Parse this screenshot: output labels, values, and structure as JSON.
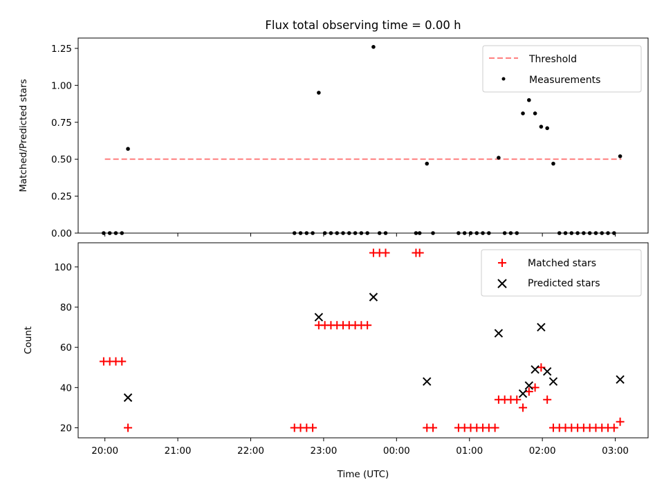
{
  "chart_data": [
    {
      "type": "scatter",
      "title": "Flux total observing time = 0.00 h",
      "xlabel": "",
      "ylabel": "Matched/Predicted stars",
      "xlim": [
        "19:38",
        "03:27"
      ],
      "ylim": [
        0,
        1.32
      ],
      "y_ticks": [
        "0.00",
        "0.25",
        "0.50",
        "0.75",
        "1.00",
        "1.25"
      ],
      "x_ticks": [
        "20:00",
        "21:00",
        "22:00",
        "23:00",
        "00:00",
        "01:00",
        "02:00",
        "03:00"
      ],
      "x_tick_labels_shown": false,
      "legend": {
        "placement": "top-right",
        "entries": [
          "Threshold",
          "Measurements"
        ]
      },
      "colors": {
        "threshold": "#ff7f7f",
        "measurements": "#000000"
      },
      "threshold": {
        "name": "Threshold",
        "y": 0.5,
        "x_start": "20:00",
        "x_end": "03:05"
      },
      "series": [
        {
          "name": "Measurements",
          "marker": "dot",
          "points": [
            [
              "19:59",
              0
            ],
            [
              "20:04",
              0
            ],
            [
              "20:09",
              0
            ],
            [
              "20:14",
              0
            ],
            [
              "20:19",
              0.57
            ],
            [
              "22:36",
              0
            ],
            [
              "22:41",
              0
            ],
            [
              "22:46",
              0
            ],
            [
              "22:51",
              0
            ],
            [
              "22:56",
              0.95
            ],
            [
              "23:01",
              0
            ],
            [
              "23:06",
              0
            ],
            [
              "23:11",
              0
            ],
            [
              "23:16",
              0
            ],
            [
              "23:21",
              0
            ],
            [
              "23:26",
              0
            ],
            [
              "23:31",
              0
            ],
            [
              "23:36",
              0
            ],
            [
              "23:41",
              1.26
            ],
            [
              "23:46",
              0
            ],
            [
              "23:51",
              0
            ],
            [
              "00:16",
              0
            ],
            [
              "00:19",
              0
            ],
            [
              "00:25",
              0.47
            ],
            [
              "00:30",
              0
            ],
            [
              "00:51",
              0
            ],
            [
              "00:56",
              0
            ],
            [
              "01:01",
              0
            ],
            [
              "01:06",
              0
            ],
            [
              "01:11",
              0
            ],
            [
              "01:16",
              0
            ],
            [
              "01:24",
              0.51
            ],
            [
              "01:29",
              0
            ],
            [
              "01:34",
              0
            ],
            [
              "01:39",
              0
            ],
            [
              "01:44",
              0.81
            ],
            [
              "01:49",
              0.9
            ],
            [
              "01:54",
              0.81
            ],
            [
              "01:59",
              0.72
            ],
            [
              "02:04",
              0.71
            ],
            [
              "02:09",
              0.47
            ],
            [
              "02:14",
              0
            ],
            [
              "02:19",
              0
            ],
            [
              "02:24",
              0
            ],
            [
              "02:29",
              0
            ],
            [
              "02:34",
              0
            ],
            [
              "02:39",
              0
            ],
            [
              "02:44",
              0
            ],
            [
              "02:49",
              0
            ],
            [
              "02:54",
              0
            ],
            [
              "02:59",
              0
            ],
            [
              "03:04",
              0.52
            ]
          ]
        }
      ]
    },
    {
      "type": "scatter",
      "title": "",
      "xlabel": "Time (UTC)",
      "ylabel": "Count",
      "xlim": [
        "19:38",
        "03:27"
      ],
      "ylim": [
        15,
        112
      ],
      "y_ticks": [
        "20",
        "40",
        "60",
        "80",
        "100"
      ],
      "x_ticks": [
        "20:00",
        "21:00",
        "22:00",
        "23:00",
        "00:00",
        "01:00",
        "02:00",
        "03:00"
      ],
      "legend": {
        "placement": "top-right",
        "entries": [
          "Matched stars",
          "Predicted stars"
        ]
      },
      "colors": {
        "matched": "#ff0000",
        "predicted": "#000000"
      },
      "series": [
        {
          "name": "Matched stars",
          "marker": "plus",
          "points": [
            [
              "19:59",
              53
            ],
            [
              "20:04",
              53
            ],
            [
              "20:09",
              53
            ],
            [
              "20:14",
              53
            ],
            [
              "20:19",
              20
            ],
            [
              "22:36",
              20
            ],
            [
              "22:41",
              20
            ],
            [
              "22:46",
              20
            ],
            [
              "22:51",
              20
            ],
            [
              "22:56",
              71
            ],
            [
              "23:01",
              71
            ],
            [
              "23:06",
              71
            ],
            [
              "23:11",
              71
            ],
            [
              "23:16",
              71
            ],
            [
              "23:21",
              71
            ],
            [
              "23:26",
              71
            ],
            [
              "23:31",
              71
            ],
            [
              "23:36",
              71
            ],
            [
              "23:41",
              107
            ],
            [
              "23:46",
              107
            ],
            [
              "23:51",
              107
            ],
            [
              "00:16",
              107
            ],
            [
              "00:19",
              107
            ],
            [
              "00:25",
              20
            ],
            [
              "00:30",
              20
            ],
            [
              "00:51",
              20
            ],
            [
              "00:56",
              20
            ],
            [
              "01:01",
              20
            ],
            [
              "01:06",
              20
            ],
            [
              "01:11",
              20
            ],
            [
              "01:16",
              20
            ],
            [
              "01:21",
              20
            ],
            [
              "01:24",
              34
            ],
            [
              "01:29",
              34
            ],
            [
              "01:34",
              34
            ],
            [
              "01:39",
              34
            ],
            [
              "01:44",
              30
            ],
            [
              "01:49",
              38
            ],
            [
              "01:54",
              40
            ],
            [
              "01:59",
              50
            ],
            [
              "02:04",
              34
            ],
            [
              "02:09",
              20
            ],
            [
              "02:14",
              20
            ],
            [
              "02:19",
              20
            ],
            [
              "02:24",
              20
            ],
            [
              "02:29",
              20
            ],
            [
              "02:34",
              20
            ],
            [
              "02:39",
              20
            ],
            [
              "02:44",
              20
            ],
            [
              "02:49",
              20
            ],
            [
              "02:54",
              20
            ],
            [
              "02:59",
              20
            ],
            [
              "03:04",
              23
            ]
          ]
        },
        {
          "name": "Predicted stars",
          "marker": "x",
          "points": [
            [
              "20:19",
              35
            ],
            [
              "22:56",
              75
            ],
            [
              "23:41",
              85
            ],
            [
              "00:25",
              43
            ],
            [
              "01:24",
              67
            ],
            [
              "01:44",
              37
            ],
            [
              "01:49",
              41
            ],
            [
              "01:54",
              49
            ],
            [
              "01:59",
              70
            ],
            [
              "02:04",
              48
            ],
            [
              "02:09",
              43
            ],
            [
              "03:04",
              44
            ]
          ]
        }
      ]
    }
  ]
}
